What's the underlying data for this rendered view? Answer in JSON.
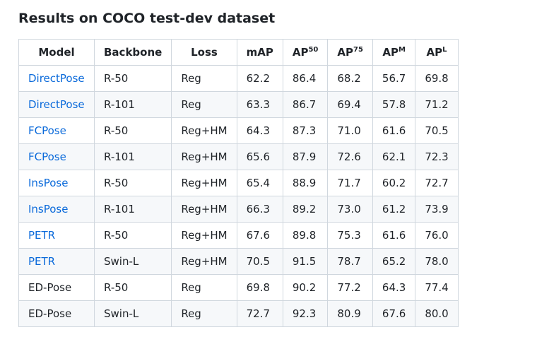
{
  "title": "Results on COCO test-dev dataset",
  "link_color": "#0969da",
  "table": {
    "headers": [
      {
        "text": "Model",
        "sup": ""
      },
      {
        "text": "Backbone",
        "sup": ""
      },
      {
        "text": "Loss",
        "sup": ""
      },
      {
        "text": "mAP",
        "sup": ""
      },
      {
        "text": "AP",
        "sup": "50"
      },
      {
        "text": "AP",
        "sup": "75"
      },
      {
        "text": "AP",
        "sup": "M"
      },
      {
        "text": "AP",
        "sup": "L"
      }
    ],
    "rows": [
      {
        "model": "DirectPose",
        "link": true,
        "backbone": "R-50",
        "loss": "Reg",
        "map": "62.2",
        "ap50": "86.4",
        "ap75": "68.2",
        "apm": "56.7",
        "apl": "69.8"
      },
      {
        "model": "DirectPose",
        "link": true,
        "backbone": "R-101",
        "loss": "Reg",
        "map": "63.3",
        "ap50": "86.7",
        "ap75": "69.4",
        "apm": "57.8",
        "apl": "71.2"
      },
      {
        "model": "FCPose",
        "link": true,
        "backbone": "R-50",
        "loss": "Reg+HM",
        "map": "64.3",
        "ap50": "87.3",
        "ap75": "71.0",
        "apm": "61.6",
        "apl": "70.5"
      },
      {
        "model": "FCPose",
        "link": true,
        "backbone": "R-101",
        "loss": "Reg+HM",
        "map": "65.6",
        "ap50": "87.9",
        "ap75": "72.6",
        "apm": "62.1",
        "apl": "72.3"
      },
      {
        "model": "InsPose",
        "link": true,
        "backbone": "R-50",
        "loss": "Reg+HM",
        "map": "65.4",
        "ap50": "88.9",
        "ap75": "71.7",
        "apm": "60.2",
        "apl": "72.7"
      },
      {
        "model": "InsPose",
        "link": true,
        "backbone": "R-101",
        "loss": "Reg+HM",
        "map": "66.3",
        "ap50": "89.2",
        "ap75": "73.0",
        "apm": "61.2",
        "apl": "73.9"
      },
      {
        "model": "PETR",
        "link": true,
        "backbone": "R-50",
        "loss": "Reg+HM",
        "map": "67.6",
        "ap50": "89.8",
        "ap75": "75.3",
        "apm": "61.6",
        "apl": "76.0"
      },
      {
        "model": "PETR",
        "link": true,
        "backbone": "Swin-L",
        "loss": "Reg+HM",
        "map": "70.5",
        "ap50": "91.5",
        "ap75": "78.7",
        "apm": "65.2",
        "apl": "78.0"
      },
      {
        "model": "ED-Pose",
        "link": false,
        "backbone": "R-50",
        "loss": "Reg",
        "map": "69.8",
        "ap50": "90.2",
        "ap75": "77.2",
        "apm": "64.3",
        "apl": "77.4"
      },
      {
        "model": "ED-Pose",
        "link": false,
        "backbone": "Swin-L",
        "loss": "Reg",
        "map": "72.7",
        "ap50": "92.3",
        "ap75": "80.9",
        "apm": "67.6",
        "apl": "80.0"
      }
    ]
  }
}
